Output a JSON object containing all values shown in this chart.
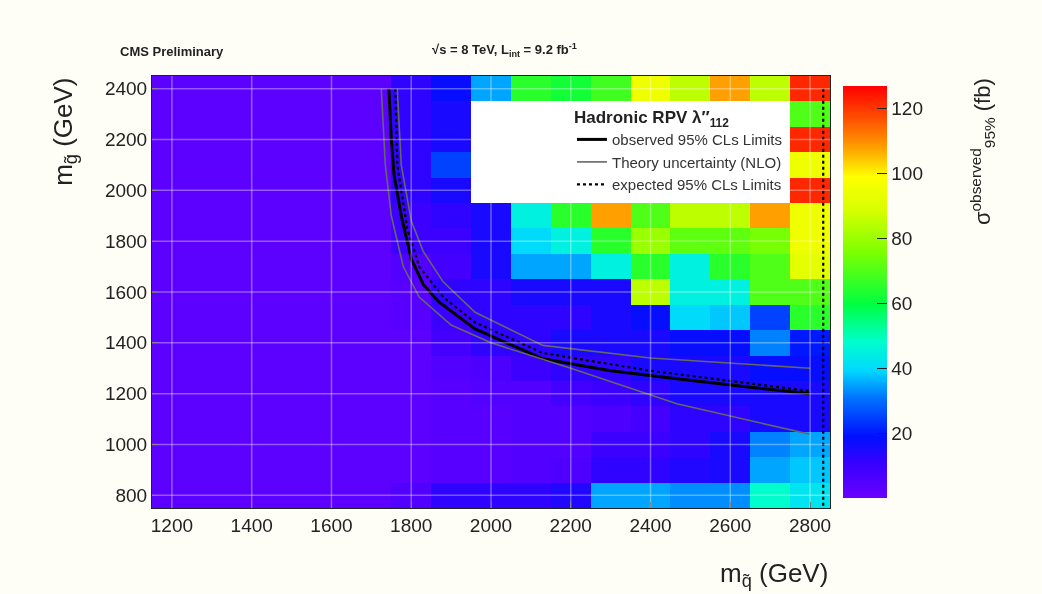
{
  "chart_data": {
    "type": "heatmap",
    "title": "CMS Preliminary",
    "subtitle": "√s = 8 TeV, L$_{int}$ = 9.2 fb$^{-1}$",
    "xlabel": "m$_{q̃}$ (GeV)",
    "ylabel": "m$_{g̃}$ (GeV)",
    "clabel": "σ$^{observed}$$_{95%}$ (fb)",
    "legend_title": "Hadronic RPV λ″$_{112}$",
    "x": [
      1200,
      1300,
      1400,
      1500,
      1600,
      1700,
      1800,
      1900,
      2000,
      2100,
      2200,
      2300,
      2400,
      2500,
      2600,
      2700,
      2800
    ],
    "y": [
      2400,
      2300,
      2200,
      2100,
      2000,
      1900,
      1800,
      1700,
      1600,
      1500,
      1400,
      1300,
      1200,
      1100,
      1000,
      900,
      800
    ],
    "cells": [
      [
        3,
        3,
        3,
        3,
        3,
        3,
        12,
        18,
        35,
        65,
        62,
        68,
        95,
        85,
        108,
        85,
        122
      ],
      [
        3,
        3,
        3,
        3,
        3,
        3,
        12,
        15,
        null,
        null,
        null,
        null,
        null,
        null,
        null,
        null,
        70
      ],
      [
        3,
        3,
        3,
        3,
        3,
        3,
        12,
        15,
        null,
        null,
        null,
        null,
        null,
        null,
        null,
        null,
        122
      ],
      [
        3,
        3,
        3,
        3,
        3,
        3,
        12,
        25,
        null,
        null,
        null,
        null,
        null,
        null,
        null,
        null,
        95
      ],
      [
        3,
        3,
        3,
        3,
        3,
        3,
        12,
        15,
        null,
        null,
        null,
        null,
        null,
        null,
        null,
        null,
        122
      ],
      [
        3,
        3,
        3,
        3,
        3,
        3,
        10,
        12,
        15,
        45,
        65,
        108,
        70,
        85,
        85,
        108,
        95
      ],
      [
        3,
        3,
        3,
        3,
        3,
        3,
        10,
        10,
        15,
        40,
        45,
        65,
        80,
        72,
        72,
        75,
        95
      ],
      [
        3,
        3,
        3,
        3,
        3,
        3,
        5,
        8,
        15,
        35,
        35,
        45,
        65,
        45,
        65,
        70,
        92
      ],
      [
        3,
        3,
        3,
        3,
        3,
        3,
        4,
        12,
        12,
        15,
        15,
        15,
        85,
        45,
        45,
        70,
        70
      ],
      [
        3,
        3,
        3,
        3,
        3,
        3,
        4,
        10,
        12,
        12,
        12,
        15,
        18,
        40,
        38,
        25,
        65
      ],
      [
        3,
        3,
        3,
        3,
        3,
        3,
        3,
        8,
        12,
        12,
        15,
        15,
        15,
        18,
        18,
        32,
        20
      ],
      [
        3,
        3,
        3,
        3,
        3,
        3,
        3,
        5,
        6,
        10,
        12,
        12,
        15,
        15,
        15,
        18,
        18
      ],
      [
        3,
        3,
        3,
        3,
        3,
        3,
        3,
        4,
        5,
        5,
        8,
        10,
        12,
        15,
        15,
        15,
        15
      ],
      [
        3,
        3,
        3,
        3,
        3,
        3,
        3,
        4,
        4,
        5,
        5,
        6,
        8,
        12,
        12,
        15,
        15
      ],
      [
        3,
        3,
        3,
        3,
        3,
        3,
        3,
        4,
        4,
        5,
        5,
        10,
        10,
        12,
        15,
        32,
        35
      ],
      [
        3,
        3,
        3,
        3,
        3,
        3,
        3,
        4,
        4,
        5,
        6,
        12,
        12,
        14,
        15,
        35,
        38
      ],
      [
        3,
        3,
        3,
        3,
        3,
        3,
        5,
        12,
        12,
        12,
        14,
        35,
        35,
        33,
        33,
        48,
        42
      ]
    ],
    "clim": [
      0,
      127
    ],
    "cticks": [
      20,
      40,
      60,
      80,
      100,
      120
    ],
    "xlim": [
      1150,
      2850
    ],
    "ylim": [
      750,
      2450
    ],
    "xticks": [
      1200,
      1400,
      1600,
      1800,
      2000,
      2200,
      2400,
      2600,
      2800
    ],
    "yticks": [
      800,
      1000,
      1200,
      1400,
      1600,
      1800,
      2000,
      2200,
      2400
    ],
    "grid": true,
    "legend": "top right",
    "series": [
      {
        "name": "observed 95% CLs Limits",
        "type": "line",
        "color": "#000000",
        "line_style": "solid",
        "x": [
          1744,
          1750,
          1757,
          1775,
          1800,
          1830,
          1870,
          1960,
          2130,
          2300,
          2466,
          2650,
          2800
        ],
        "values": [
          2400,
          2200,
          2060,
          1900,
          1730,
          1630,
          1560,
          1455,
          1337,
          1290,
          1259,
          1225,
          1200
        ]
      },
      {
        "name": "Theory uncertainty (NLO)",
        "type": "line",
        "color": "#666666",
        "line_style": "solid",
        "x": [
          1765,
          1775,
          1800,
          1830,
          1880,
          1960,
          2130,
          2400,
          2800,
          null,
          1725,
          1735,
          1750,
          1780,
          1820,
          1900,
          2000,
          2200,
          2466,
          2800
        ],
        "values": [
          2400,
          2100,
          1880,
          1760,
          1640,
          1520,
          1390,
          1340,
          1300,
          null,
          2400,
          2100,
          1900,
          1700,
          1580,
          1470,
          1400,
          1300,
          1160,
          1040
        ]
      },
      {
        "name": "expected 95% CLs Limits",
        "type": "line",
        "color": "#000000",
        "line_style": "dotted",
        "x": [
          1760,
          1765,
          1790,
          1820,
          1880,
          1960,
          2130,
          2400,
          2800,
          null,
          2833,
          2833
        ],
        "values": [
          2400,
          2100,
          1850,
          1700,
          1580,
          1480,
          1360,
          1290,
          1210,
          null,
          2400,
          750
        ]
      }
    ]
  }
}
